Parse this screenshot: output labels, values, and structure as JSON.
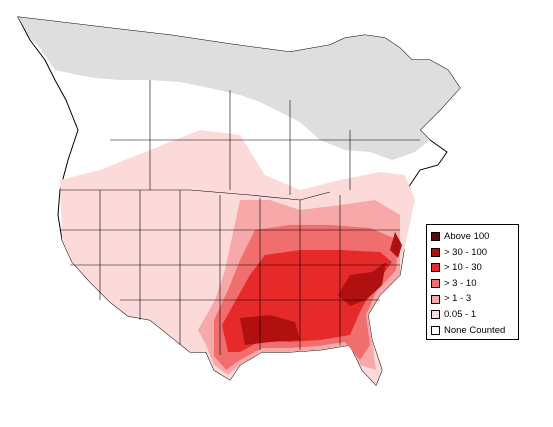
{
  "legend": {
    "items": [
      {
        "label": "Above 100",
        "color": "#5a0a0a"
      },
      {
        "label": "> 30 - 100",
        "color": "#b0100f"
      },
      {
        "label": "> 10 - 30",
        "color": "#e62a2a"
      },
      {
        "label": "> 3 - 10",
        "color": "#f06e6e"
      },
      {
        "label": "> 1 - 3",
        "color": "#f7a9a9"
      },
      {
        "label": "0.05 - 1",
        "color": "#fcdada"
      },
      {
        "label": "None Counted",
        "color": "#ffffff"
      }
    ]
  },
  "map": {
    "no_data_color": "#dedede",
    "land_color": "#ffffff",
    "border_color": "#000000"
  }
}
